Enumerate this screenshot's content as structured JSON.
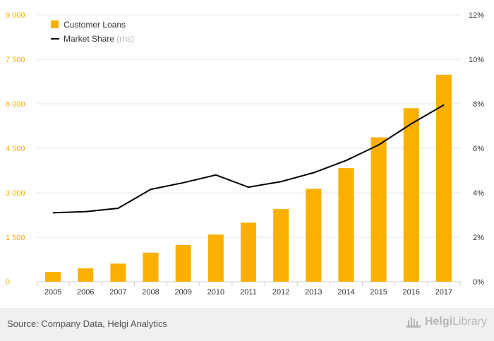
{
  "chart_data": {
    "type": "bar+line",
    "categories": [
      "2005",
      "2006",
      "2007",
      "2008",
      "2009",
      "2010",
      "2011",
      "2012",
      "2013",
      "2014",
      "2015",
      "2016",
      "2017"
    ],
    "series": [
      {
        "name": "Customer Loans",
        "type": "bar",
        "axis": "left",
        "color": "#f9b000",
        "values": [
          330,
          450,
          610,
          980,
          1240,
          1590,
          1990,
          2450,
          3130,
          3830,
          4870,
          5850,
          6980
        ]
      },
      {
        "name": "Market Share",
        "name_suffix": "(rhs)",
        "type": "line",
        "axis": "right",
        "color": "#000000",
        "values": [
          3.1,
          3.15,
          3.3,
          4.15,
          4.45,
          4.8,
          4.25,
          4.5,
          4.9,
          5.45,
          6.15,
          7.1,
          7.95
        ]
      }
    ],
    "left_axis": {
      "ticks": [
        0,
        1500,
        3000,
        4500,
        6000,
        7500,
        9000
      ],
      "tick_labels": [
        "0",
        "1 500",
        "3 000",
        "4 500",
        "6 000",
        "7 500",
        "9 000"
      ],
      "range": [
        0,
        9000
      ],
      "color": "#f9b000"
    },
    "right_axis": {
      "ticks": [
        0,
        2,
        4,
        6,
        8,
        10,
        12
      ],
      "tick_labels": [
        "0%",
        "2%",
        "4%",
        "6%",
        "8%",
        "10%",
        "12%"
      ],
      "range": [
        0,
        12
      ]
    },
    "grid": true,
    "legend_placement": "top-left"
  },
  "footer": {
    "source": "Source: Company Data, Helgi Analytics",
    "brand_prefix": "Helgi",
    "brand_suffix": "Library"
  }
}
